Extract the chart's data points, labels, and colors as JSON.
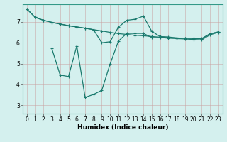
{
  "xlabel": "Humidex (Indice chaleur)",
  "background_color": "#d4f0ee",
  "line_color": "#1a7a6e",
  "grid_color_v": "#c8a8a8",
  "grid_color_h": "#c8a8a8",
  "xlim": [
    -0.5,
    23.5
  ],
  "ylim": [
    2.6,
    7.85
  ],
  "yticks": [
    3,
    4,
    5,
    6,
    7
  ],
  "xticks": [
    0,
    1,
    2,
    3,
    4,
    5,
    6,
    7,
    8,
    9,
    10,
    11,
    12,
    13,
    14,
    15,
    16,
    17,
    18,
    19,
    20,
    21,
    22,
    23
  ],
  "line1_x": [
    0,
    1,
    2,
    3,
    4,
    5,
    6,
    7,
    8,
    9,
    10,
    11,
    12,
    13,
    14,
    15,
    16,
    17,
    18,
    19,
    20,
    21,
    22,
    23
  ],
  "line1_y": [
    7.62,
    7.22,
    7.08,
    6.98,
    6.9,
    6.82,
    6.76,
    6.7,
    6.63,
    6.57,
    6.5,
    6.44,
    6.4,
    6.36,
    6.34,
    6.3,
    6.27,
    6.25,
    6.23,
    6.22,
    6.21,
    6.2,
    6.43,
    6.52
  ],
  "line2_x": [
    0,
    1,
    2,
    3,
    4,
    5,
    6,
    7,
    8,
    9,
    10,
    11,
    12,
    13,
    14,
    15,
    16,
    17,
    18,
    19,
    20,
    21,
    22,
    23
  ],
  "line2_y": [
    7.62,
    7.22,
    7.08,
    6.98,
    6.9,
    6.82,
    6.76,
    6.7,
    6.63,
    6.0,
    6.05,
    6.75,
    7.08,
    7.13,
    7.28,
    6.55,
    6.3,
    6.28,
    6.23,
    6.22,
    6.21,
    6.19,
    6.43,
    6.52
  ],
  "line3_x": [
    3,
    4,
    5,
    6,
    7,
    8,
    9,
    10,
    11,
    12,
    13,
    14,
    15,
    16,
    17,
    18,
    19,
    20,
    21,
    22,
    23
  ],
  "line3_y": [
    5.72,
    4.45,
    4.38,
    5.85,
    3.38,
    3.52,
    3.72,
    4.98,
    6.08,
    6.45,
    6.45,
    6.45,
    6.25,
    6.25,
    6.22,
    6.2,
    6.18,
    6.16,
    6.14,
    6.38,
    6.5
  ]
}
